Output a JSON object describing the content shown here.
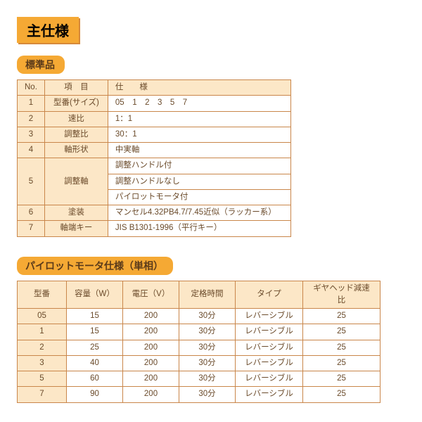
{
  "title": "主仕様",
  "sections": {
    "standard": {
      "tag": "標準品",
      "headers": {
        "no": "No.",
        "item": "項　目",
        "spec": "仕　　様"
      },
      "rows": [
        {
          "no": "1",
          "item": "型番(サイズ)",
          "spec": "05　1　2　3　5　7"
        },
        {
          "no": "2",
          "item": "速比",
          "spec": "1：1"
        },
        {
          "no": "3",
          "item": "調整比",
          "spec": "30：1"
        },
        {
          "no": "4",
          "item": "軸形状",
          "spec": "中実軸"
        },
        {
          "no": "5",
          "item": "調整軸",
          "specs": [
            "調整ハンドル付",
            "調整ハンドルなし",
            "パイロットモータ付"
          ]
        },
        {
          "no": "6",
          "item": "塗装",
          "spec": "マンセル4.32PB4.7/7.45近似（ラッカー系）"
        },
        {
          "no": "7",
          "item": "軸端キー",
          "spec": "JIS B1301-1996（平行キー）"
        }
      ]
    },
    "pilot": {
      "tag": "パイロットモータ仕様（単相）",
      "headers": {
        "model": "型番",
        "capacity": "容量（W）",
        "voltage": "電圧（V）",
        "rated": "定格時間",
        "type": "タイプ",
        "gear": "ギヤヘッド減速比"
      },
      "rows": [
        {
          "model": "05",
          "capacity": "15",
          "voltage": "200",
          "rated": "30分",
          "type": "レバーシブル",
          "gear": "25"
        },
        {
          "model": "1",
          "capacity": "15",
          "voltage": "200",
          "rated": "30分",
          "type": "レバーシブル",
          "gear": "25"
        },
        {
          "model": "2",
          "capacity": "25",
          "voltage": "200",
          "rated": "30分",
          "type": "レバーシブル",
          "gear": "25"
        },
        {
          "model": "3",
          "capacity": "40",
          "voltage": "200",
          "rated": "30分",
          "type": "レバーシブル",
          "gear": "25"
        },
        {
          "model": "5",
          "capacity": "60",
          "voltage": "200",
          "rated": "30分",
          "type": "レバーシブル",
          "gear": "25"
        },
        {
          "model": "7",
          "capacity": "90",
          "voltage": "200",
          "rated": "30分",
          "type": "レバーシブル",
          "gear": "25"
        }
      ]
    }
  },
  "style": {
    "accent_color": "#f5a934",
    "header_fill": "#fce7c7",
    "border_color": "#c9864a",
    "text_color": "#6a4a2a",
    "title_fontsize": 20,
    "section_tag_fontsize": 14,
    "cell_fontsize": 11.5
  }
}
